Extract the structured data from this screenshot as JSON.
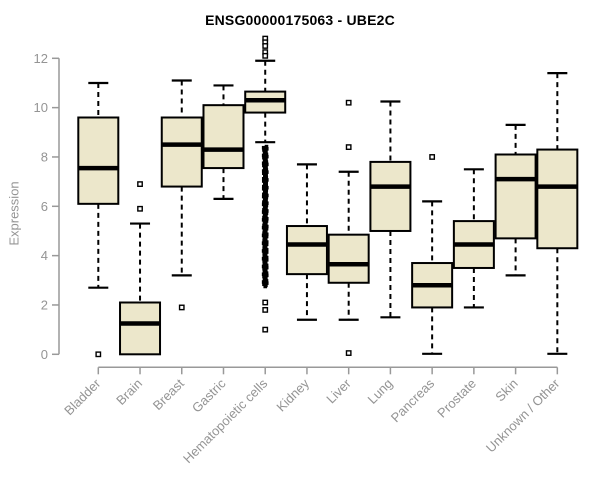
{
  "chart_data": {
    "type": "boxplot",
    "title": "ENSG00000175063 - UBE2C",
    "ylabel": "Expression",
    "xlabel": "",
    "ylim": [
      0,
      12
    ],
    "yticks": [
      0,
      2,
      4,
      6,
      8,
      10,
      12
    ],
    "grid": false,
    "legend": "none",
    "colors": {
      "box_fill": "#ECE7CB",
      "box_border": "#000000",
      "median": "#000000",
      "whisker": "#000000",
      "axis_line": "#999999",
      "axis_text": "#949494",
      "title_text": "#000000",
      "background": "#ffffff"
    },
    "categories": [
      "Bladder",
      "Brain",
      "Breast",
      "Gastric",
      "Hematopoietic cells",
      "Kidney",
      "Liver",
      "Lung",
      "Pancreas",
      "Prostate",
      "Skin",
      "Unknown / Other"
    ],
    "boxes": [
      {
        "name": "Bladder",
        "low": 2.7,
        "q1": 6.1,
        "median": 7.55,
        "q3": 9.6,
        "high": 11.0,
        "outliers": [
          0.0
        ]
      },
      {
        "name": "Brain",
        "low": 0.0,
        "q1": 0.0,
        "median": 1.25,
        "q3": 2.1,
        "high": 5.3,
        "outliers": [
          6.9,
          5.9
        ]
      },
      {
        "name": "Breast",
        "low": 3.2,
        "q1": 6.8,
        "median": 8.5,
        "q3": 9.6,
        "high": 11.1,
        "outliers": [
          1.9
        ]
      },
      {
        "name": "Gastric",
        "low": 6.3,
        "q1": 7.55,
        "median": 8.3,
        "q3": 10.1,
        "high": 10.9,
        "outliers": []
      },
      {
        "name": "Hematopoietic cells",
        "low": 8.6,
        "q1": 9.8,
        "median": 10.3,
        "q3": 10.65,
        "high": 11.9,
        "outliers": [
          12.8,
          12.65,
          12.5,
          12.25,
          12.1,
          2.1,
          1.8,
          1.0
        ],
        "outlier_band": [
          2.75,
          8.4
        ]
      },
      {
        "name": "Kidney",
        "low": 1.4,
        "q1": 3.25,
        "median": 4.45,
        "q3": 5.2,
        "high": 7.7,
        "outliers": []
      },
      {
        "name": "Liver",
        "low": 1.4,
        "q1": 2.9,
        "median": 3.65,
        "q3": 4.85,
        "high": 7.4,
        "outliers": [
          10.2,
          8.4,
          0.05
        ]
      },
      {
        "name": "Lung",
        "low": 1.5,
        "q1": 5.0,
        "median": 6.8,
        "q3": 7.8,
        "high": 10.25,
        "outliers": []
      },
      {
        "name": "Pancreas",
        "low": 0.02,
        "q1": 1.9,
        "median": 2.8,
        "q3": 3.7,
        "high": 6.2,
        "outliers": [
          8.0
        ]
      },
      {
        "name": "Prostate",
        "low": 1.9,
        "q1": 3.5,
        "median": 4.45,
        "q3": 5.4,
        "high": 7.5,
        "outliers": []
      },
      {
        "name": "Skin",
        "low": 3.2,
        "q1": 4.7,
        "median": 7.1,
        "q3": 8.1,
        "high": 9.3,
        "outliers": []
      },
      {
        "name": "Unknown / Other",
        "low": 0.02,
        "q1": 4.3,
        "median": 6.8,
        "q3": 8.3,
        "high": 11.4,
        "outliers": []
      }
    ]
  }
}
